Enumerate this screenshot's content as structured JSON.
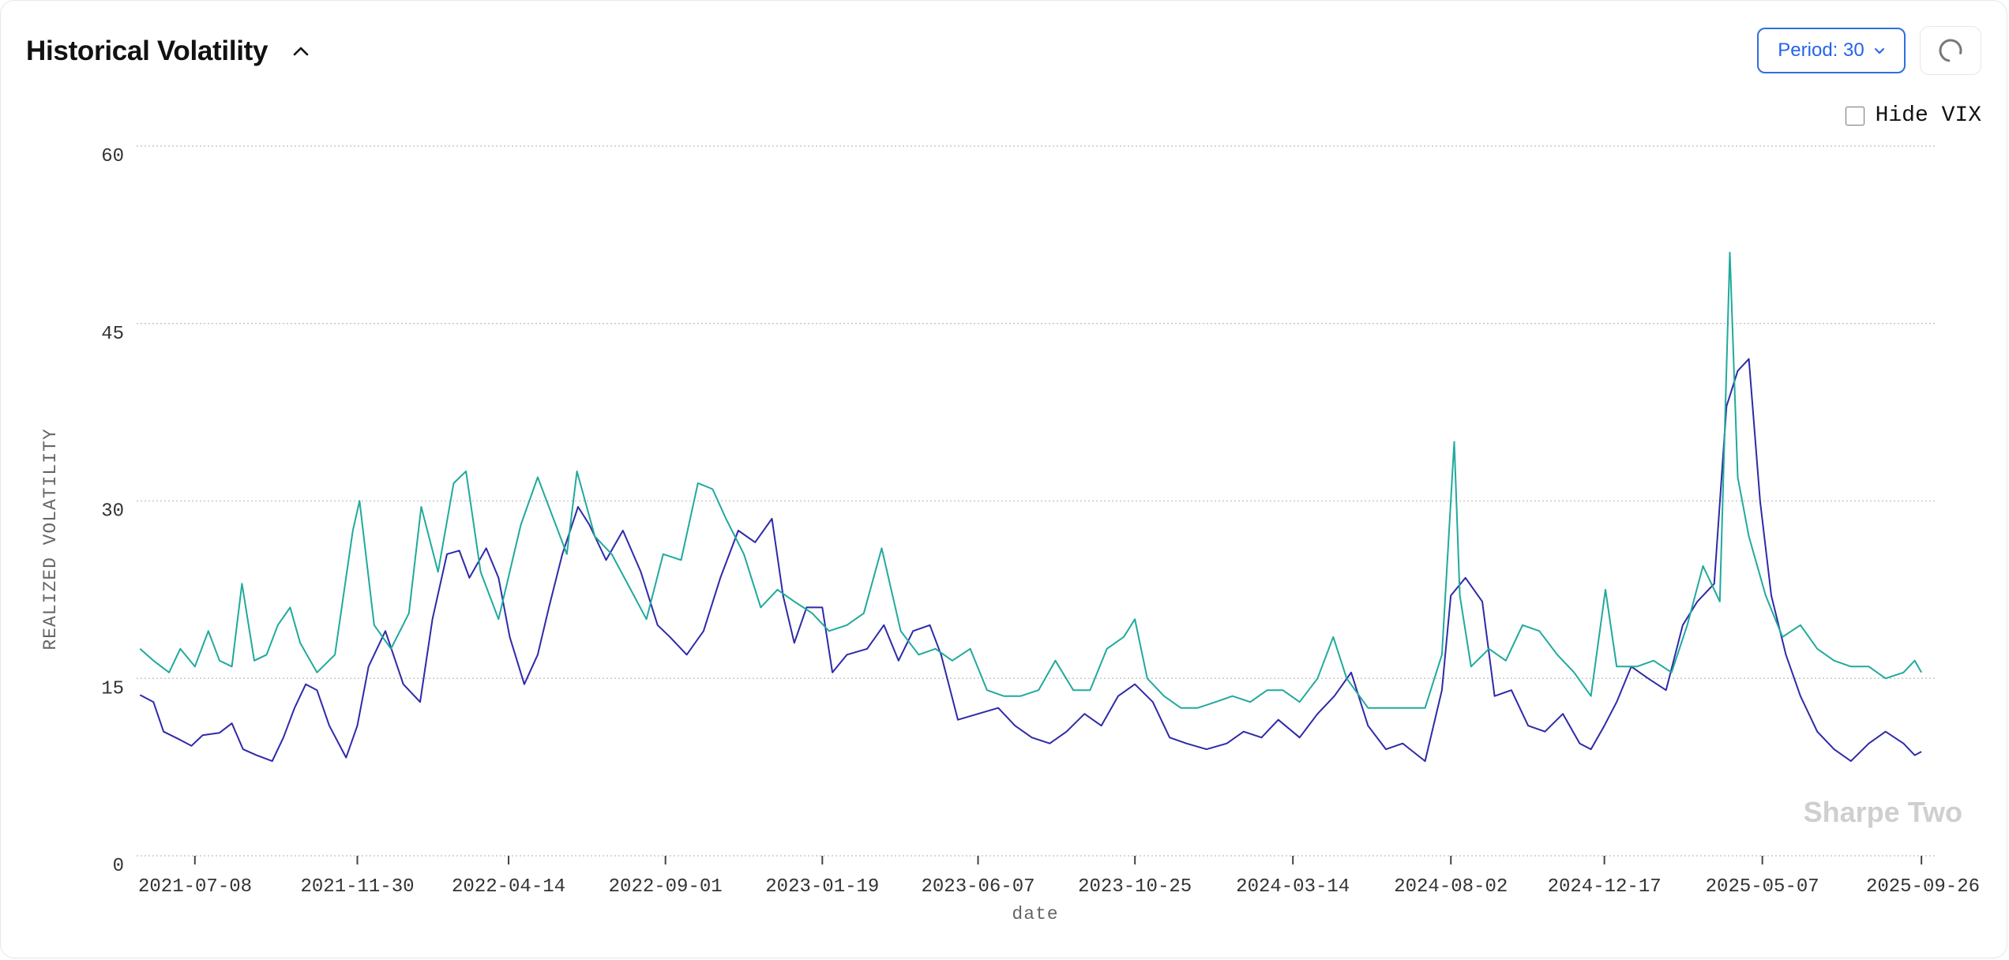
{
  "header": {
    "title": "Historical Volatility",
    "period_label": "Period: 30"
  },
  "options": {
    "hide_vix_label": "Hide VIX",
    "hide_vix_checked": false
  },
  "watermark": "Sharpe Two",
  "colors": {
    "realized": "#2e2aa8",
    "vix": "#20aa9c",
    "accent": "#2563eb"
  },
  "icons": {
    "collapse": "chevron-up-icon",
    "period_dropdown": "chevron-down-icon",
    "refresh": "loading-spinner-icon"
  },
  "chart_data": {
    "type": "line",
    "ylabel": "REALIZED VOLATILITY",
    "xlabel": "date",
    "ylim": [
      0,
      60
    ],
    "yticks": [
      0,
      15,
      30,
      45,
      60
    ],
    "xlim": [
      "2021-05-17",
      "2025-10-10"
    ],
    "xticks": [
      "2021-07-08",
      "2021-11-30",
      "2022-04-14",
      "2022-09-01",
      "2023-01-19",
      "2023-06-07",
      "2023-10-25",
      "2024-03-14",
      "2024-08-02",
      "2024-12-17",
      "2025-05-07",
      "2025-09-26"
    ],
    "grid": "horizontal-dotted",
    "series": [
      {
        "key": "realized",
        "color": "#2e2aa8",
        "points": [
          [
            "2021-05-20",
            13.6
          ],
          [
            "2021-06-01",
            13.0
          ],
          [
            "2021-06-10",
            10.5
          ],
          [
            "2021-06-25",
            9.8
          ],
          [
            "2021-07-05",
            9.3
          ],
          [
            "2021-07-15",
            10.2
          ],
          [
            "2021-07-30",
            10.4
          ],
          [
            "2021-08-10",
            11.2
          ],
          [
            "2021-08-20",
            9.0
          ],
          [
            "2021-09-01",
            8.5
          ],
          [
            "2021-09-15",
            8.0
          ],
          [
            "2021-09-25",
            10.0
          ],
          [
            "2021-10-05",
            12.5
          ],
          [
            "2021-10-15",
            14.5
          ],
          [
            "2021-10-25",
            14.0
          ],
          [
            "2021-11-05",
            11.0
          ],
          [
            "2021-11-20",
            8.3
          ],
          [
            "2021-11-30",
            11.0
          ],
          [
            "2021-12-10",
            16.0
          ],
          [
            "2021-12-25",
            19.0
          ],
          [
            "2022-01-10",
            14.5
          ],
          [
            "2022-01-25",
            13.0
          ],
          [
            "2022-02-05",
            20.0
          ],
          [
            "2022-02-18",
            25.5
          ],
          [
            "2022-03-01",
            25.8
          ],
          [
            "2022-03-10",
            23.5
          ],
          [
            "2022-03-25",
            26.0
          ],
          [
            "2022-04-05",
            23.5
          ],
          [
            "2022-04-15",
            18.5
          ],
          [
            "2022-04-28",
            14.5
          ],
          [
            "2022-05-10",
            17.0
          ],
          [
            "2022-05-20",
            21.0
          ],
          [
            "2022-06-01",
            25.5
          ],
          [
            "2022-06-15",
            29.5
          ],
          [
            "2022-06-25",
            28.0
          ],
          [
            "2022-07-10",
            25.0
          ],
          [
            "2022-07-25",
            27.5
          ],
          [
            "2022-08-10",
            24.0
          ],
          [
            "2022-08-25",
            19.5
          ],
          [
            "2022-09-05",
            18.5
          ],
          [
            "2022-09-20",
            17.0
          ],
          [
            "2022-10-05",
            19.0
          ],
          [
            "2022-10-20",
            23.5
          ],
          [
            "2022-11-05",
            27.5
          ],
          [
            "2022-11-20",
            26.5
          ],
          [
            "2022-12-05",
            28.5
          ],
          [
            "2022-12-15",
            22.0
          ],
          [
            "2022-12-25",
            18.0
          ],
          [
            "2023-01-05",
            21.0
          ],
          [
            "2023-01-19",
            21.0
          ],
          [
            "2023-01-28",
            15.5
          ],
          [
            "2023-02-10",
            17.0
          ],
          [
            "2023-02-28",
            17.5
          ],
          [
            "2023-03-15",
            19.5
          ],
          [
            "2023-03-28",
            16.5
          ],
          [
            "2023-04-10",
            19.0
          ],
          [
            "2023-04-25",
            19.5
          ],
          [
            "2023-05-05",
            17.0
          ],
          [
            "2023-05-20",
            11.5
          ],
          [
            "2023-06-07",
            12.0
          ],
          [
            "2023-06-25",
            12.5
          ],
          [
            "2023-07-10",
            11.0
          ],
          [
            "2023-07-25",
            10.0
          ],
          [
            "2023-08-10",
            9.5
          ],
          [
            "2023-08-25",
            10.5
          ],
          [
            "2023-09-10",
            12.0
          ],
          [
            "2023-09-25",
            11.0
          ],
          [
            "2023-10-10",
            13.5
          ],
          [
            "2023-10-25",
            14.5
          ],
          [
            "2023-11-10",
            13.0
          ],
          [
            "2023-11-25",
            10.0
          ],
          [
            "2023-12-10",
            9.5
          ],
          [
            "2023-12-28",
            9.0
          ],
          [
            "2024-01-15",
            9.5
          ],
          [
            "2024-01-30",
            10.5
          ],
          [
            "2024-02-15",
            10.0
          ],
          [
            "2024-03-01",
            11.5
          ],
          [
            "2024-03-20",
            10.0
          ],
          [
            "2024-04-05",
            12.0
          ],
          [
            "2024-04-20",
            13.5
          ],
          [
            "2024-05-05",
            15.5
          ],
          [
            "2024-05-20",
            11.0
          ],
          [
            "2024-06-05",
            9.0
          ],
          [
            "2024-06-20",
            9.5
          ],
          [
            "2024-07-10",
            8.0
          ],
          [
            "2024-07-25",
            14.0
          ],
          [
            "2024-08-02",
            22.0
          ],
          [
            "2024-08-15",
            23.5
          ],
          [
            "2024-08-30",
            21.5
          ],
          [
            "2024-09-10",
            13.5
          ],
          [
            "2024-09-25",
            14.0
          ],
          [
            "2024-10-10",
            11.0
          ],
          [
            "2024-10-25",
            10.5
          ],
          [
            "2024-11-10",
            12.0
          ],
          [
            "2024-11-25",
            9.5
          ],
          [
            "2024-12-05",
            9.0
          ],
          [
            "2024-12-17",
            11.0
          ],
          [
            "2024-12-28",
            13.0
          ],
          [
            "2025-01-10",
            16.0
          ],
          [
            "2025-01-25",
            15.0
          ],
          [
            "2025-02-10",
            14.0
          ],
          [
            "2025-02-25",
            19.5
          ],
          [
            "2025-03-10",
            21.5
          ],
          [
            "2025-03-25",
            23.0
          ],
          [
            "2025-04-05",
            38.0
          ],
          [
            "2025-04-15",
            41.0
          ],
          [
            "2025-04-25",
            42.0
          ],
          [
            "2025-05-05",
            30.0
          ],
          [
            "2025-05-15",
            22.0
          ],
          [
            "2025-05-28",
            17.0
          ],
          [
            "2025-06-10",
            13.5
          ],
          [
            "2025-06-25",
            10.5
          ],
          [
            "2025-07-10",
            9.0
          ],
          [
            "2025-07-25",
            8.0
          ],
          [
            "2025-08-10",
            9.5
          ],
          [
            "2025-08-25",
            10.5
          ],
          [
            "2025-09-10",
            9.5
          ],
          [
            "2025-09-20",
            8.5
          ],
          [
            "2025-09-26",
            8.8
          ]
        ]
      },
      {
        "key": "vix",
        "color": "#20aa9c",
        "points": [
          [
            "2021-05-20",
            17.5
          ],
          [
            "2021-06-01",
            16.5
          ],
          [
            "2021-06-15",
            15.5
          ],
          [
            "2021-06-25",
            17.5
          ],
          [
            "2021-07-08",
            16.0
          ],
          [
            "2021-07-20",
            19.0
          ],
          [
            "2021-07-30",
            16.5
          ],
          [
            "2021-08-10",
            16.0
          ],
          [
            "2021-08-19",
            23.0
          ],
          [
            "2021-08-30",
            16.5
          ],
          [
            "2021-09-10",
            17.0
          ],
          [
            "2021-09-20",
            19.5
          ],
          [
            "2021-10-01",
            21.0
          ],
          [
            "2021-10-10",
            18.0
          ],
          [
            "2021-10-25",
            15.5
          ],
          [
            "2021-11-10",
            17.0
          ],
          [
            "2021-11-26",
            27.5
          ],
          [
            "2021-12-02",
            30.0
          ],
          [
            "2021-12-15",
            19.5
          ],
          [
            "2021-12-30",
            17.5
          ],
          [
            "2022-01-15",
            20.5
          ],
          [
            "2022-01-26",
            29.5
          ],
          [
            "2022-02-10",
            24.0
          ],
          [
            "2022-02-24",
            31.5
          ],
          [
            "2022-03-07",
            32.5
          ],
          [
            "2022-03-20",
            24.0
          ],
          [
            "2022-04-05",
            20.0
          ],
          [
            "2022-04-25",
            28.0
          ],
          [
            "2022-05-10",
            32.0
          ],
          [
            "2022-05-20",
            29.5
          ],
          [
            "2022-06-05",
            25.5
          ],
          [
            "2022-06-14",
            32.5
          ],
          [
            "2022-06-30",
            27.0
          ],
          [
            "2022-07-15",
            25.5
          ],
          [
            "2022-08-01",
            22.5
          ],
          [
            "2022-08-15",
            20.0
          ],
          [
            "2022-08-30",
            25.5
          ],
          [
            "2022-09-15",
            25.0
          ],
          [
            "2022-09-30",
            31.5
          ],
          [
            "2022-10-13",
            31.0
          ],
          [
            "2022-10-25",
            28.5
          ],
          [
            "2022-11-10",
            25.5
          ],
          [
            "2022-11-25",
            21.0
          ],
          [
            "2022-12-10",
            22.5
          ],
          [
            "2022-12-25",
            21.5
          ],
          [
            "2023-01-10",
            20.5
          ],
          [
            "2023-01-25",
            19.0
          ],
          [
            "2023-02-10",
            19.5
          ],
          [
            "2023-02-25",
            20.5
          ],
          [
            "2023-03-13",
            26.0
          ],
          [
            "2023-03-30",
            19.0
          ],
          [
            "2023-04-15",
            17.0
          ],
          [
            "2023-04-30",
            17.5
          ],
          [
            "2023-05-15",
            16.5
          ],
          [
            "2023-05-31",
            17.5
          ],
          [
            "2023-06-15",
            14.0
          ],
          [
            "2023-06-30",
            13.5
          ],
          [
            "2023-07-15",
            13.5
          ],
          [
            "2023-07-31",
            14.0
          ],
          [
            "2023-08-15",
            16.5
          ],
          [
            "2023-08-31",
            14.0
          ],
          [
            "2023-09-15",
            14.0
          ],
          [
            "2023-09-30",
            17.5
          ],
          [
            "2023-10-15",
            18.5
          ],
          [
            "2023-10-25",
            20.0
          ],
          [
            "2023-11-05",
            15.0
          ],
          [
            "2023-11-20",
            13.5
          ],
          [
            "2023-12-05",
            12.5
          ],
          [
            "2023-12-20",
            12.5
          ],
          [
            "2024-01-05",
            13.0
          ],
          [
            "2024-01-20",
            13.5
          ],
          [
            "2024-02-05",
            13.0
          ],
          [
            "2024-02-20",
            14.0
          ],
          [
            "2024-03-05",
            14.0
          ],
          [
            "2024-03-20",
            13.0
          ],
          [
            "2024-04-05",
            15.0
          ],
          [
            "2024-04-19",
            18.5
          ],
          [
            "2024-05-01",
            15.0
          ],
          [
            "2024-05-20",
            12.5
          ],
          [
            "2024-06-05",
            12.5
          ],
          [
            "2024-06-20",
            12.5
          ],
          [
            "2024-07-10",
            12.5
          ],
          [
            "2024-07-25",
            17.0
          ],
          [
            "2024-08-05",
            35.0
          ],
          [
            "2024-08-10",
            22.0
          ],
          [
            "2024-08-20",
            16.0
          ],
          [
            "2024-09-05",
            17.5
          ],
          [
            "2024-09-20",
            16.5
          ],
          [
            "2024-10-05",
            19.5
          ],
          [
            "2024-10-20",
            19.0
          ],
          [
            "2024-11-05",
            17.0
          ],
          [
            "2024-11-20",
            15.5
          ],
          [
            "2024-12-05",
            13.5
          ],
          [
            "2024-12-18",
            22.5
          ],
          [
            "2024-12-28",
            16.0
          ],
          [
            "2025-01-15",
            16.0
          ],
          [
            "2025-01-30",
            16.5
          ],
          [
            "2025-02-15",
            15.5
          ],
          [
            "2025-03-01",
            19.5
          ],
          [
            "2025-03-15",
            24.5
          ],
          [
            "2025-03-30",
            21.5
          ],
          [
            "2025-04-08",
            51.0
          ],
          [
            "2025-04-15",
            32.0
          ],
          [
            "2025-04-25",
            27.0
          ],
          [
            "2025-05-10",
            22.0
          ],
          [
            "2025-05-25",
            18.5
          ],
          [
            "2025-06-10",
            19.5
          ],
          [
            "2025-06-25",
            17.5
          ],
          [
            "2025-07-10",
            16.5
          ],
          [
            "2025-07-25",
            16.0
          ],
          [
            "2025-08-10",
            16.0
          ],
          [
            "2025-08-25",
            15.0
          ],
          [
            "2025-09-10",
            15.5
          ],
          [
            "2025-09-20",
            16.5
          ],
          [
            "2025-09-26",
            15.5
          ]
        ]
      }
    ]
  }
}
